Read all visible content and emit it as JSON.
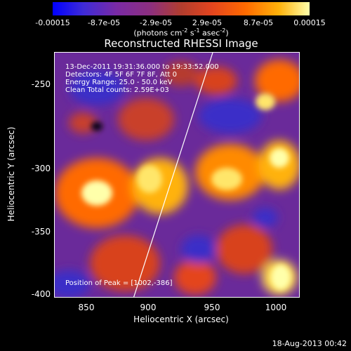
{
  "colorbar": {
    "ticks": [
      "-0.00015",
      "-8.7e-05",
      "-2.9e-05",
      "2.9e-05",
      "8.7e-05",
      "0.00015"
    ],
    "units_main": "(photons cm",
    "units_exp1": "-2",
    "units_mid": " s",
    "units_exp2": "-1",
    "units_mid2": " asec",
    "units_exp3": "-2",
    "units_end": ")"
  },
  "plot": {
    "title": "Reconstructed RHESSI Image",
    "annotations": {
      "time_range": "13-Dec-2011 19:31:36.000 to 19:33:52.000",
      "detectors": "Detectors: 4F 5F 6F 7F 8F, Att 0",
      "energy": "Energy Range: 25.0 - 50.0 keV",
      "clean": "Clean    Total counts: 2.59E+03",
      "peak": "Position of Peak = [1002,-386]"
    },
    "xlabel": "Heliocentric X (arcsec)",
    "ylabel": "Heliocentric Y (arcsec)",
    "xticks": [
      "850",
      "900",
      "950",
      "1000"
    ],
    "yticks": [
      "-250",
      "-300",
      "-350",
      "-400"
    ],
    "xrange": [
      825,
      1020
    ],
    "yrange": [
      -402,
      -207
    ]
  },
  "footer": {
    "timestamp": "18-Aug-2013 00:42"
  },
  "colors": {
    "low": "#0000ff",
    "mid": "#7a2aa5",
    "high": "#ffffaa"
  }
}
